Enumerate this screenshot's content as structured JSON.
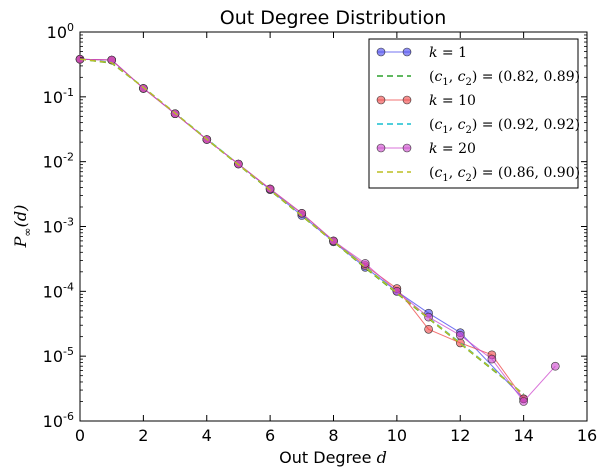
{
  "chart_data": {
    "type": "line",
    "title": "Out Degree Distribution",
    "xlabel": {
      "text": "Out Degree",
      "var": "d"
    },
    "ylabel": {
      "base": "P",
      "sub": "∞",
      "arg": "(d)"
    },
    "x_scale": "linear",
    "y_scale": "log",
    "xlim": [
      0,
      16
    ],
    "ylim": [
      1e-06,
      1
    ],
    "x_ticks": [
      "0",
      "2",
      "4",
      "6",
      "8",
      "10",
      "12",
      "14",
      "16"
    ],
    "y_ticks": [
      {
        "value": 1e-06,
        "base": "10",
        "exp": "-6"
      },
      {
        "value": 1e-05,
        "base": "10",
        "exp": "-5"
      },
      {
        "value": 0.0001,
        "base": "10",
        "exp": "-4"
      },
      {
        "value": 0.001,
        "base": "10",
        "exp": "-3"
      },
      {
        "value": 0.01,
        "base": "10",
        "exp": "-2"
      },
      {
        "value": 0.1,
        "base": "10",
        "exp": "-1"
      },
      {
        "value": 1,
        "base": "10",
        "exp": "0"
      }
    ],
    "grid": false,
    "legend_position": "top-right",
    "series": [
      {
        "name": "k=1",
        "kind": "markers",
        "color": "#4444ee",
        "x": [
          0,
          1,
          2,
          3,
          4,
          5,
          6,
          7,
          8,
          9,
          10,
          11,
          12,
          14
        ],
        "y": [
          0.38,
          0.37,
          0.135,
          0.055,
          0.022,
          0.0092,
          0.0037,
          0.00148,
          0.00058,
          0.000235,
          0.0001,
          4.6e-05,
          2.3e-05,
          2.2e-06
        ]
      },
      {
        "name": "(c1,c2)=(0.82, 0.89)",
        "kind": "dashed",
        "color": "#2ca02c",
        "x": [
          0,
          1,
          2,
          3,
          4,
          5,
          6,
          7,
          8,
          9,
          10,
          11,
          12,
          13,
          14
        ],
        "y": [
          0.38,
          0.33,
          0.14,
          0.056,
          0.022,
          0.0089,
          0.0036,
          0.00145,
          0.00058,
          0.00023,
          9.3e-05,
          3.8e-05,
          1.55e-05,
          6.3e-06,
          2.6e-06
        ]
      },
      {
        "name": "k=10",
        "kind": "markers",
        "color": "#ee4444",
        "x": [
          0,
          1,
          2,
          3,
          4,
          5,
          6,
          7,
          8,
          9,
          10,
          11,
          12,
          13,
          14
        ],
        "y": [
          0.38,
          0.37,
          0.135,
          0.055,
          0.022,
          0.0092,
          0.0038,
          0.0016,
          0.0006,
          0.00025,
          0.00011,
          2.6e-05,
          1.6e-05,
          1.05e-05,
          2.2e-06
        ]
      },
      {
        "name": "(c1,c2)=(0.92, 0.92)",
        "kind": "dashed",
        "color": "#17becf",
        "x": [
          0,
          1,
          2,
          3,
          4,
          5,
          6,
          7,
          8,
          9,
          10,
          11,
          12,
          13,
          14
        ],
        "y": [
          0.38,
          0.34,
          0.14,
          0.056,
          0.0225,
          0.0091,
          0.0037,
          0.0015,
          0.0006,
          0.00024,
          9.7e-05,
          3.9e-05,
          1.6e-05,
          6.5e-06,
          2.6e-06
        ]
      },
      {
        "name": "k=20",
        "kind": "markers",
        "color": "#cc44cc",
        "x": [
          0,
          1,
          2,
          3,
          4,
          5,
          6,
          7,
          8,
          9,
          10,
          11,
          12,
          13,
          14,
          15
        ],
        "y": [
          0.38,
          0.37,
          0.135,
          0.055,
          0.022,
          0.0092,
          0.0038,
          0.0016,
          0.0006,
          0.00027,
          0.0001,
          4e-05,
          2.1e-05,
          9e-06,
          2e-06,
          7e-06
        ]
      },
      {
        "name": "(c1,c2)=(0.86, 0.90)",
        "kind": "dashed",
        "color": "#bcbd22",
        "x": [
          0,
          1,
          2,
          3,
          4,
          5,
          6,
          7,
          8,
          9,
          10,
          11,
          12,
          13,
          14
        ],
        "y": [
          0.38,
          0.335,
          0.14,
          0.056,
          0.0222,
          0.009,
          0.00365,
          0.00147,
          0.00059,
          0.000235,
          9.5e-05,
          3.85e-05,
          1.57e-05,
          6.4e-06,
          2.6e-06
        ]
      }
    ]
  },
  "legend": [
    {
      "kind": "markers",
      "color": "#4444ee",
      "parts": [
        {
          "t": "k",
          "m": true
        },
        {
          "t": " = 1"
        }
      ]
    },
    {
      "kind": "dashed",
      "color": "#2ca02c",
      "parts": [
        {
          "t": "("
        },
        {
          "t": "c",
          "m": true
        },
        {
          "t": "1",
          "sub": true
        },
        {
          "t": ", "
        },
        {
          "t": "c",
          "m": true
        },
        {
          "t": "2",
          "sub": true
        },
        {
          "t": ") = (0.82, 0.89)"
        }
      ]
    },
    {
      "kind": "markers",
      "color": "#ee4444",
      "parts": [
        {
          "t": "k",
          "m": true
        },
        {
          "t": " = 10"
        }
      ]
    },
    {
      "kind": "dashed",
      "color": "#17becf",
      "parts": [
        {
          "t": "("
        },
        {
          "t": "c",
          "m": true
        },
        {
          "t": "1",
          "sub": true
        },
        {
          "t": ", "
        },
        {
          "t": "c",
          "m": true
        },
        {
          "t": "2",
          "sub": true
        },
        {
          "t": ") = (0.92, 0.92)"
        }
      ]
    },
    {
      "kind": "markers",
      "color": "#cc44cc",
      "parts": [
        {
          "t": "k",
          "m": true
        },
        {
          "t": " = 20"
        }
      ]
    },
    {
      "kind": "dashed",
      "color": "#bcbd22",
      "parts": [
        {
          "t": "("
        },
        {
          "t": "c",
          "m": true
        },
        {
          "t": "1",
          "sub": true
        },
        {
          "t": ", "
        },
        {
          "t": "c",
          "m": true
        },
        {
          "t": "2",
          "sub": true
        },
        {
          "t": ") = (0.86, 0.90)"
        }
      ]
    }
  ]
}
